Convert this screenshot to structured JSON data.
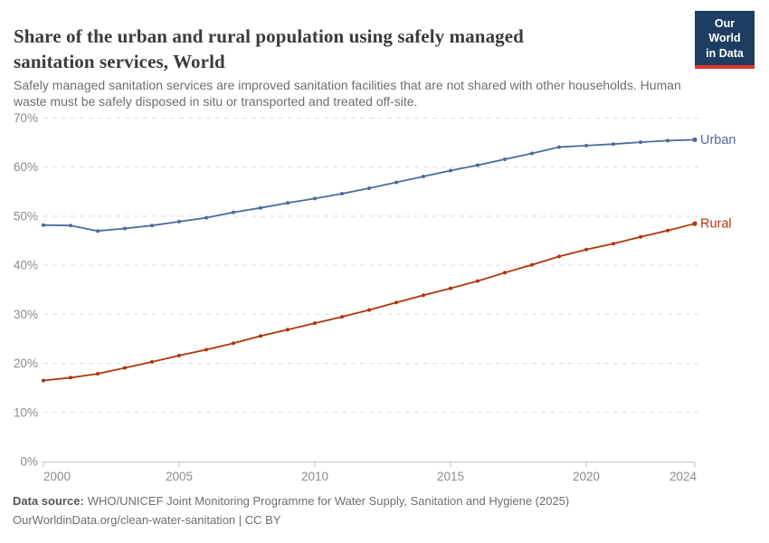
{
  "header": {
    "title": "Share of the urban and rural population using safely managed sanitation services, World",
    "subtitle": "Safely managed sanitation services are improved sanitation facilities that are not shared with other households. Human waste must be safely disposed in situ or transported and treated off-site.",
    "logo": {
      "line1": "Our World",
      "line2": "in Data",
      "bg_color": "#1d3d63",
      "accent_color": "#e0362e"
    }
  },
  "chart_data": {
    "type": "line",
    "title": "Share of the urban and rural population using safely managed sanitation services, World",
    "xlabel": "",
    "ylabel": "",
    "x": [
      2000,
      2001,
      2002,
      2003,
      2004,
      2005,
      2006,
      2007,
      2008,
      2009,
      2010,
      2011,
      2012,
      2013,
      2014,
      2015,
      2016,
      2017,
      2018,
      2019,
      2020,
      2021,
      2022,
      2023,
      2024
    ],
    "series": [
      {
        "name": "Urban",
        "color": "#4C6A9C",
        "values": [
          48.2,
          48.1,
          47.0,
          47.5,
          48.1,
          48.9,
          49.7,
          50.8,
          51.7,
          52.7,
          53.6,
          54.6,
          55.7,
          56.9,
          58.1,
          59.3,
          60.4,
          61.6,
          62.8,
          64.1,
          64.4,
          64.7,
          65.1,
          65.4,
          65.6
        ]
      },
      {
        "name": "Rural",
        "color": "#B13507",
        "values": [
          16.5,
          17.1,
          17.9,
          19.1,
          20.3,
          21.6,
          22.8,
          24.1,
          25.6,
          26.9,
          28.2,
          29.5,
          30.9,
          32.4,
          33.9,
          35.3,
          36.8,
          38.5,
          40.1,
          41.8,
          43.2,
          44.4,
          45.8,
          47.1,
          48.5
        ]
      }
    ],
    "ylim": [
      0,
      70
    ],
    "yticks": [
      0,
      10,
      20,
      30,
      40,
      50,
      60,
      70
    ],
    "ytick_suffix": "%",
    "xticks": [
      2000,
      2005,
      2010,
      2015,
      2020,
      2024
    ],
    "grid": true,
    "legend_position": "end-of-line"
  },
  "footer": {
    "source_label": "Data source:",
    "source_text": "WHO/UNICEF Joint Monitoring Programme for Water Supply, Sanitation and Hygiene (2025)",
    "citation": "OurWorldinData.org/clean-water-sanitation | CC BY"
  }
}
